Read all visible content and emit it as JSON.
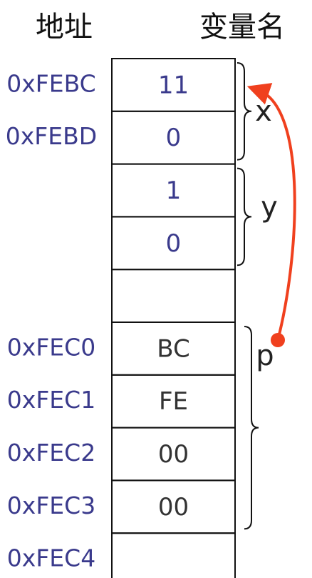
{
  "header": {
    "address": "地址",
    "variable": "变量名"
  },
  "rows": [
    {
      "address": "0xFEBC",
      "value": "11"
    },
    {
      "address": "0xFEBD",
      "value": "0"
    },
    {
      "value": "1"
    },
    {
      "value": "0"
    },
    {},
    {
      "address": "0xFEC0",
      "value": "BC"
    },
    {
      "address": "0xFEC1",
      "value": "FE"
    },
    {
      "address": "0xFEC2",
      "value": "00"
    },
    {
      "address": "0xFEC3",
      "value": "00"
    },
    {
      "address": "0xFEC4"
    }
  ],
  "variables": [
    {
      "name": "x",
      "first_row": 0,
      "last_row": 1
    },
    {
      "name": "y",
      "first_row": 2,
      "last_row": 3
    },
    {
      "name": "p",
      "first_row": 5,
      "last_row": 8
    }
  ]
}
